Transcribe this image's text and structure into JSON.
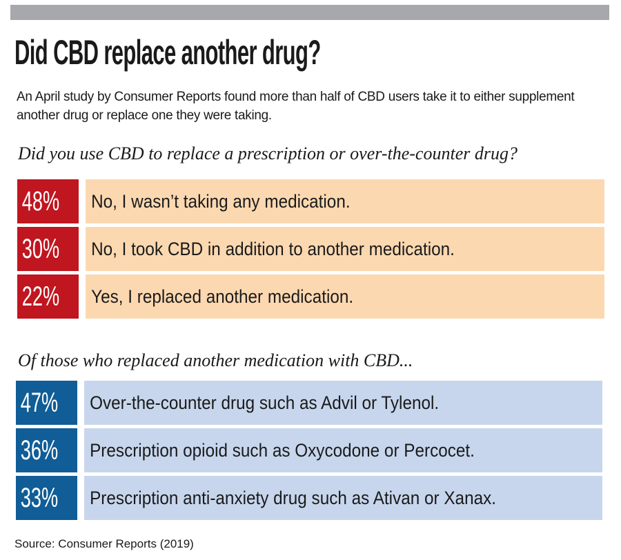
{
  "header": {
    "title": "Did CBD replace another drug?",
    "intro": "An April study by Consumer Reports found more than half of CBD users take it to either supplement another drug or replace one they were taking."
  },
  "colors": {
    "top_bar": "#a7a8ab",
    "section1_accent": "#c0161f",
    "section1_fill": "#fcd8b0",
    "section2_accent": "#105d97",
    "section2_fill": "#c7d6ed"
  },
  "chart_data": [
    {
      "type": "table",
      "title": "Did you use CBD to replace a prescription or over-the-counter drug?",
      "unit": "%",
      "categories": [
        "No, I wasn’t taking any medication.",
        "No, I took CBD in addition to another medication.",
        "Yes, I replaced another medication."
      ],
      "values": [
        48,
        30,
        22
      ],
      "value_labels": [
        "48%",
        "30%",
        "22%"
      ]
    },
    {
      "type": "table",
      "title": "Of those who replaced another medication with CBD...",
      "unit": "%",
      "categories": [
        "Over-the-counter drug such as Advil or Tylenol.",
        "Prescription opioid such as Oxycodone or Percocet.",
        "Prescription anti-anxiety drug such as Ativan or Xanax."
      ],
      "values": [
        47,
        36,
        33
      ],
      "value_labels": [
        "47%",
        "36%",
        "33%"
      ]
    }
  ],
  "footer": {
    "source": "Source: Consumer Reports (2019)"
  }
}
